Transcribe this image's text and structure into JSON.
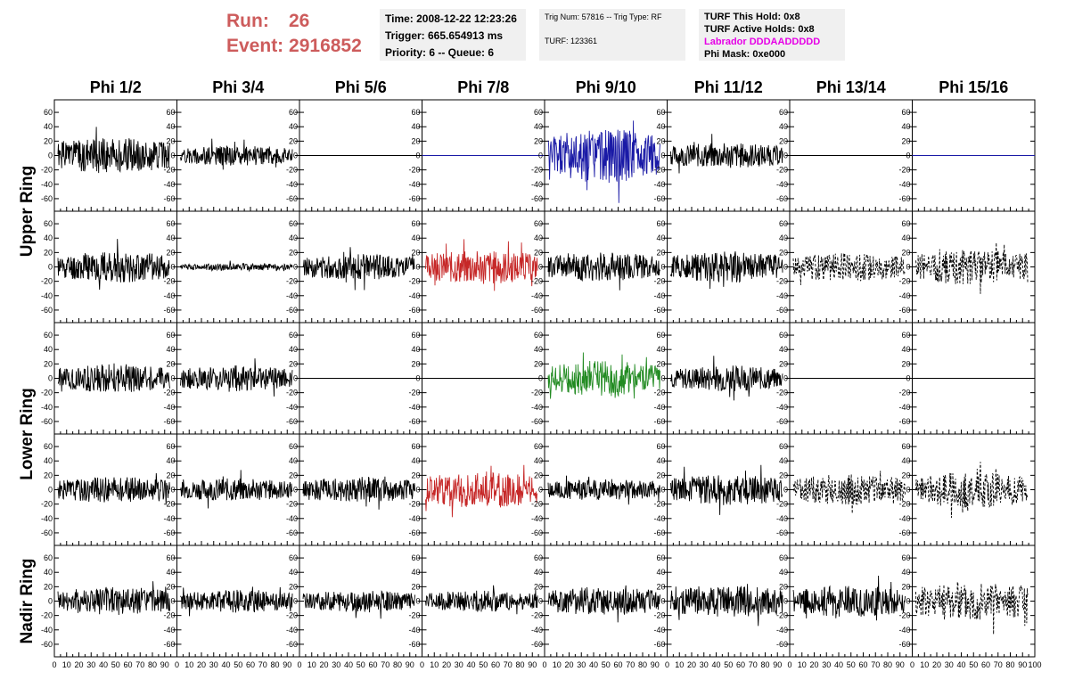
{
  "run": {
    "run_label": "Run:",
    "run_value": "26",
    "event_label": "Event:",
    "event_value": "2916852"
  },
  "trigger_box": {
    "time": "Time: 2008-12-22 12:23:26",
    "trigger": "Trigger: 665.654913 ms",
    "priority": "Priority: 6 -- Queue: 6"
  },
  "trig_box": {
    "trig": "Trig Num: 57816 -- Trig Type: RF",
    "turf": "TURF: 123361"
  },
  "turf_box": {
    "this_hold": "TURF This Hold: 0x8",
    "active_holds": "TURF Active Holds: 0x8",
    "labrador": "Labrador DDDAADDDDD",
    "phi_mask": "Phi Mask: 0xe000"
  },
  "colors": {
    "labrador": "#e600e6",
    "run_text": "#cd5c5c",
    "box_bg": "#f0f0f0"
  },
  "chart_data": {
    "type": "line",
    "columns": [
      "Phi 1/2",
      "Phi 3/4",
      "Phi 5/6",
      "Phi 7/8",
      "Phi 9/10",
      "Phi 11/12",
      "Phi 13/14",
      "Phi 15/16"
    ],
    "rings": [
      "Upper Ring",
      "Lower Ring",
      "Nadir Ring"
    ],
    "ylim": [
      -70,
      70
    ],
    "yticks": [
      -60,
      -40,
      -20,
      0,
      20,
      40,
      60
    ],
    "xlim": [
      0,
      100
    ],
    "xtick_labels": [
      "0",
      "10",
      "20",
      "30",
      "40",
      "50",
      "60",
      "70",
      "80",
      "90",
      "100"
    ],
    "series_colors": {
      "black": "#000000",
      "blue": "#1a1aa6",
      "red": "#c62828",
      "green": "#228b22"
    },
    "panels": [
      [
        {
          "style": "black",
          "amp": 25,
          "seed": 1
        },
        {
          "style": "black",
          "amp": 14,
          "seed": 2
        },
        {
          "style": "flat_black",
          "amp": 0,
          "seed": 3
        },
        {
          "style": "flat_blue",
          "amp": 0,
          "seed": 4
        },
        {
          "style": "blue",
          "amp": 38,
          "seed": 5
        },
        {
          "style": "black",
          "amp": 18,
          "seed": 6
        },
        {
          "style": "flat_black",
          "amp": 0,
          "seed": 7
        },
        {
          "style": "flat_blue",
          "amp": 0,
          "seed": 8
        }
      ],
      [
        {
          "style": "black",
          "amp": 22,
          "seed": 11
        },
        {
          "style": "black",
          "amp": 5,
          "seed": 12
        },
        {
          "style": "black",
          "amp": 18,
          "seed": 13
        },
        {
          "style": "red",
          "amp": 24,
          "seed": 14
        },
        {
          "style": "black",
          "amp": 20,
          "seed": 15
        },
        {
          "style": "black",
          "amp": 22,
          "seed": 16
        },
        {
          "style": "dashed",
          "amp": 20,
          "seed": 17
        },
        {
          "style": "dashed",
          "amp": 25,
          "seed": 18
        }
      ],
      [
        {
          "style": "black",
          "amp": 20,
          "seed": 21
        },
        {
          "style": "black",
          "amp": 18,
          "seed": 22
        },
        {
          "style": "flat_black",
          "amp": 0,
          "seed": 23
        },
        {
          "style": "flat_black",
          "amp": 0,
          "seed": 24
        },
        {
          "style": "green",
          "amp": 25,
          "seed": 25
        },
        {
          "style": "black",
          "amp": 18,
          "seed": 26
        },
        {
          "style": "flat_black",
          "amp": 0,
          "seed": 27
        },
        {
          "style": "flat_black",
          "amp": 0,
          "seed": 28
        }
      ],
      [
        {
          "style": "black",
          "amp": 18,
          "seed": 31
        },
        {
          "style": "black",
          "amp": 16,
          "seed": 32
        },
        {
          "style": "black",
          "amp": 18,
          "seed": 33
        },
        {
          "style": "red",
          "amp": 26,
          "seed": 34
        },
        {
          "style": "black",
          "amp": 15,
          "seed": 35
        },
        {
          "style": "black",
          "amp": 22,
          "seed": 36
        },
        {
          "style": "dashed",
          "amp": 22,
          "seed": 37
        },
        {
          "style": "dashed",
          "amp": 25,
          "seed": 38
        }
      ],
      [
        {
          "style": "black",
          "amp": 20,
          "seed": 41
        },
        {
          "style": "black",
          "amp": 16,
          "seed": 42
        },
        {
          "style": "black",
          "amp": 15,
          "seed": 43
        },
        {
          "style": "black",
          "amp": 15,
          "seed": 44
        },
        {
          "style": "black",
          "amp": 20,
          "seed": 45
        },
        {
          "style": "black",
          "amp": 22,
          "seed": 46
        },
        {
          "style": "black",
          "amp": 22,
          "seed": 47
        },
        {
          "style": "dashed",
          "amp": 28,
          "seed": 48
        }
      ]
    ]
  }
}
